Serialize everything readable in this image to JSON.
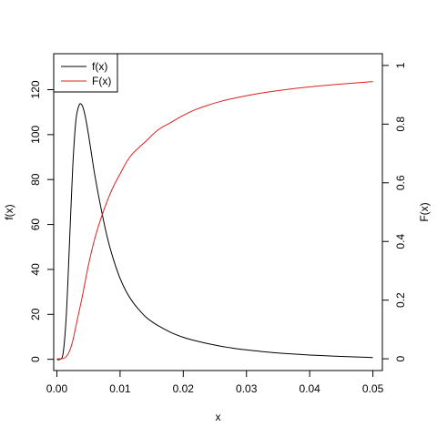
{
  "chart_data": {
    "type": "line",
    "xlabel": "x",
    "ylabel_left": "f(x)",
    "ylabel_right": "F(x)",
    "xlim": [
      -0.0005,
      0.0515
    ],
    "ylim_left": [
      -5,
      136
    ],
    "ylim_right": [
      -0.04,
      1.04
    ],
    "x_ticks": [
      {
        "value": 0.0,
        "label": "0.00"
      },
      {
        "value": 0.01,
        "label": "0.01"
      },
      {
        "value": 0.02,
        "label": "0.02"
      },
      {
        "value": 0.03,
        "label": "0.03"
      },
      {
        "value": 0.04,
        "label": "0.04"
      },
      {
        "value": 0.05,
        "label": "0.05"
      }
    ],
    "y_ticks_left": [
      {
        "value": 0,
        "label": "0"
      },
      {
        "value": 20,
        "label": "20"
      },
      {
        "value": 40,
        "label": "40"
      },
      {
        "value": 60,
        "label": "60"
      },
      {
        "value": 80,
        "label": "80"
      },
      {
        "value": 100,
        "label": "100"
      },
      {
        "value": 120,
        "label": "120"
      }
    ],
    "y_ticks_right": [
      {
        "value": 0,
        "label": "0"
      },
      {
        "value": 0.2,
        "label": "0.2"
      },
      {
        "value": 0.4,
        "label": "0.4"
      },
      {
        "value": 0.6,
        "label": "0.6"
      },
      {
        "value": 0.8,
        "label": "0.8"
      },
      {
        "value": 1,
        "label": "1"
      }
    ],
    "grid": false,
    "legend_position": "top-left",
    "series": [
      {
        "name": "f(x)",
        "axis": "left",
        "color": "#000000",
        "x": [
          0,
          0.0005,
          0.001,
          0.0015,
          0.002,
          0.0025,
          0.003,
          0.0035,
          0.004,
          0.0045,
          0.005,
          0.0055,
          0.006,
          0.007,
          0.008,
          0.009,
          0.01,
          0.011,
          0.012,
          0.013,
          0.014,
          0.015,
          0.016,
          0.018,
          0.02,
          0.022,
          0.024,
          0.026,
          0.028,
          0.03,
          0.033,
          0.036,
          0.04,
          0.044,
          0.047,
          0.05
        ],
        "y": [
          0,
          0,
          3,
          20,
          52,
          85,
          106,
          113,
          113,
          108,
          100,
          91,
          82,
          67,
          54,
          44,
          36,
          30,
          25.5,
          22,
          19,
          16.8,
          15,
          12,
          9.8,
          8.2,
          6.9,
          5.8,
          4.9,
          4.2,
          3.3,
          2.6,
          1.9,
          1.4,
          1.1,
          0.8
        ]
      },
      {
        "name": "F(x)",
        "axis": "right",
        "color": "#df2020",
        "x": [
          0,
          0.0005,
          0.001,
          0.0015,
          0.002,
          0.0025,
          0.003,
          0.0035,
          0.004,
          0.005,
          0.006,
          0.007,
          0.008,
          0.009,
          0.01,
          0.011,
          0.012,
          0.014,
          0.016,
          0.018,
          0.02,
          0.022,
          0.024,
          0.026,
          0.028,
          0.03,
          0.033,
          0.036,
          0.04,
          0.044,
          0.047,
          0.05
        ],
        "y": [
          0,
          0,
          0.001,
          0.008,
          0.026,
          0.06,
          0.11,
          0.16,
          0.21,
          0.32,
          0.41,
          0.48,
          0.54,
          0.59,
          0.63,
          0.67,
          0.7,
          0.74,
          0.78,
          0.805,
          0.83,
          0.85,
          0.865,
          0.878,
          0.888,
          0.897,
          0.908,
          0.917,
          0.927,
          0.935,
          0.94,
          0.945
        ]
      }
    ]
  }
}
